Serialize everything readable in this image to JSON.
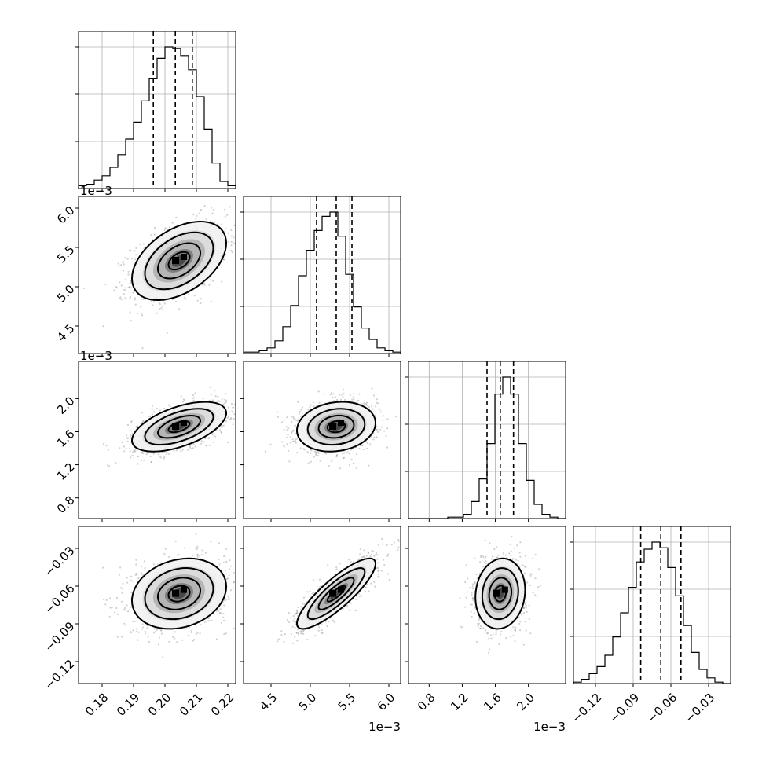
{
  "chart_data": {
    "type": "corner",
    "grid": true,
    "axes": [
      {
        "ticks": [
          0.18,
          0.19,
          0.2,
          0.21,
          0.22
        ],
        "tick_labels": [
          "0.18",
          "0.19",
          "0.20",
          "0.21",
          "0.22"
        ],
        "offset_label": ""
      },
      {
        "ticks": [
          4.5,
          5.0,
          5.5,
          6.0
        ],
        "tick_labels": [
          "4.5",
          "5.0",
          "5.5",
          "6.0"
        ],
        "offset_label": "1e−3"
      },
      {
        "ticks": [
          0.8,
          1.2,
          1.6,
          2.0
        ],
        "tick_labels": [
          "0.8",
          "1.2",
          "1.6",
          "2.0"
        ],
        "offset_label": "1e−3"
      },
      {
        "ticks": [
          -0.12,
          -0.09,
          -0.06,
          -0.03
        ],
        "tick_labels": [
          "−0.12",
          "−0.09",
          "−0.06",
          "−0.03"
        ],
        "offset_label": ""
      }
    ],
    "histograms": [
      {
        "param": 0,
        "edges": [
          0.1725,
          0.2225
        ],
        "counts": [
          2,
          3,
          6,
          9,
          15,
          24,
          35,
          47,
          62,
          78,
          92,
          100,
          99,
          94,
          84,
          65,
          42,
          18,
          5,
          2
        ],
        "quantiles": [
          0.1963,
          0.2033,
          0.2087
        ]
      },
      {
        "param": 1,
        "edges": [
          4.15,
          6.15
        ],
        "counts": [
          1,
          1,
          2,
          4,
          9,
          19,
          34,
          55,
          73,
          87,
          97,
          100,
          83,
          56,
          33,
          18,
          10,
          4,
          2,
          1
        ],
        "quantiles": [
          5.08,
          5.33,
          5.53
        ]
      },
      {
        "param": 2,
        "edges": [
          0.55,
          2.45
        ],
        "counts": [
          0,
          0,
          0,
          0,
          0,
          1,
          1,
          3,
          12,
          28,
          53,
          88,
          100,
          88,
          53,
          27,
          10,
          3,
          1,
          0
        ],
        "quantiles": [
          1.5,
          1.66,
          1.82
        ]
      },
      {
        "param": 3,
        "edges": [
          -0.1375,
          -0.0125
        ],
        "counts": [
          1,
          3,
          7,
          12,
          20,
          33,
          50,
          68,
          86,
          95,
          100,
          96,
          82,
          62,
          41,
          22,
          10,
          4,
          1,
          0
        ],
        "quantiles": [
          -0.084,
          -0.068,
          -0.052
        ]
      }
    ],
    "pairs": [
      {
        "x": 0,
        "y": 1,
        "mean": [
          0.2045,
          5.33
        ],
        "sd": [
          0.0075,
          0.25
        ],
        "rho": 0.45
      },
      {
        "x": 0,
        "y": 2,
        "mean": [
          0.2045,
          1.66
        ],
        "sd": [
          0.0075,
          0.15
        ],
        "rho": 0.55
      },
      {
        "x": 1,
        "y": 2,
        "mean": [
          5.33,
          1.66
        ],
        "sd": [
          0.25,
          0.15
        ],
        "rho": 0.15
      },
      {
        "x": 0,
        "y": 3,
        "mean": [
          0.2045,
          -0.066
        ],
        "sd": [
          0.0075,
          0.014
        ],
        "rho": 0.2
      },
      {
        "x": 1,
        "y": 3,
        "mean": [
          5.33,
          -0.066
        ],
        "sd": [
          0.25,
          0.014
        ],
        "rho": 0.85
      },
      {
        "x": 2,
        "y": 3,
        "mean": [
          1.66,
          -0.066
        ],
        "sd": [
          0.15,
          0.014
        ],
        "rho": 0.1
      }
    ]
  }
}
